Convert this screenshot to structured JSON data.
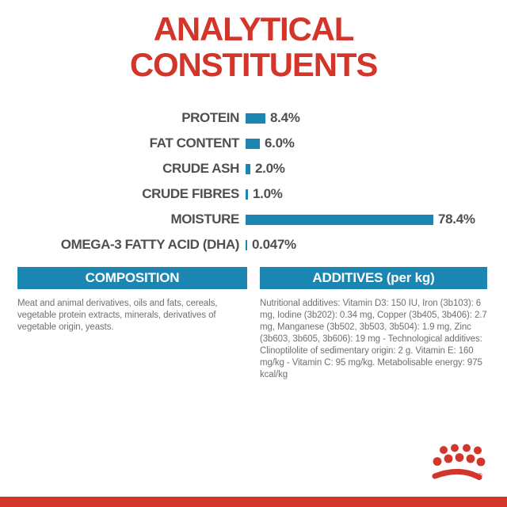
{
  "page": {
    "title_line1": "ANALYTICAL",
    "title_line2": "CONSTITUENTS"
  },
  "chart_data": {
    "type": "bar",
    "orientation": "horizontal",
    "title": "ANALYTICAL CONSTITUENTS",
    "categories": [
      "PROTEIN",
      "FAT CONTENT",
      "CRUDE ASH",
      "CRUDE FIBRES",
      "MOISTURE",
      "OMEGA-3 FATTY ACID (DHA)"
    ],
    "values": [
      8.4,
      6.0,
      2.0,
      1.0,
      78.4,
      0.047
    ],
    "value_labels": [
      "8.4%",
      "6.0%",
      "2.0%",
      "1.0%",
      "78.4%",
      "0.047%"
    ],
    "unit": "%",
    "xlim": [
      0,
      80
    ],
    "bar_color": "#1C86B2",
    "grid": false,
    "legend": false
  },
  "sections": {
    "composition": {
      "header": "COMPOSITION",
      "body": "Meat and animal derivatives, oils and fats, cereals, vegetable protein extracts, minerals, derivatives of vegetable origin, yeasts."
    },
    "additives": {
      "header": "ADDITIVES (per kg)",
      "body": "Nutritional additives: Vitamin D3: 150 IU, Iron (3b103): 6 mg, Iodine (3b202): 0.34 mg, Copper (3b405, 3b406): 2.7 mg, Manganese (3b502, 3b503, 3b504): 1.9 mg, Zinc (3b603, 3b605, 3b606): 19 mg - Technological additives: Clinoptilolite of sedimentary origin: 2 g. Vitamin E: 160 mg/kg - Vitamin C: 95 mg/kg. Metabolisable energy: 975 kcal/kg"
    }
  },
  "branding": {
    "logo": "royal-canin-crown",
    "registered_mark": "®"
  },
  "colors": {
    "red": "#D3352B",
    "blue": "#1C86B2",
    "label_gray": "#4F4F51",
    "body_gray": "#6F7073",
    "background": "#FFFFFF"
  }
}
